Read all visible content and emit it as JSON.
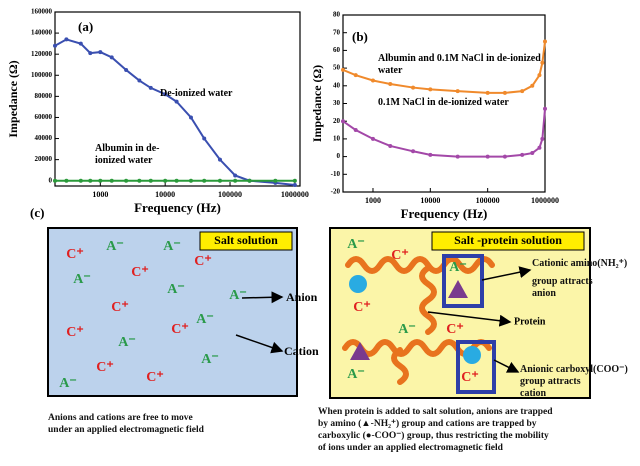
{
  "chart_data": [
    {
      "type": "line",
      "panel_label": "(a)",
      "x_label": "Frequency (Hz)",
      "y_label": "Impedance (Ω)",
      "xscale": "log",
      "xlim": [
        200,
        1200000
      ],
      "xticks": [
        1000,
        10000,
        100000,
        1000000
      ],
      "ylim": [
        -5000,
        160000
      ],
      "yticks": [
        0,
        20000,
        40000,
        60000,
        80000,
        100000,
        120000,
        140000,
        160000
      ],
      "x": [
        200,
        300,
        500,
        700,
        1000,
        1500,
        2500,
        4000,
        6000,
        10000,
        15000,
        25000,
        40000,
        70000,
        120000,
        200000,
        500000,
        1000000
      ],
      "series": [
        {
          "name": "De-ionized water",
          "color": "#3a4fb0",
          "values": [
            128000,
            134000,
            130000,
            121000,
            122000,
            117000,
            105000,
            95000,
            88000,
            82000,
            75000,
            60000,
            40000,
            20000,
            5000,
            0,
            -2000,
            -4000
          ]
        },
        {
          "name": "Albumin in de-ionized water",
          "color": "#2a9a3a",
          "values": [
            0,
            0,
            0,
            0,
            0,
            0,
            0,
            0,
            0,
            0,
            0,
            0,
            0,
            0,
            0,
            0,
            0,
            0
          ]
        }
      ]
    },
    {
      "type": "line",
      "panel_label": "(b)",
      "x_label": "Frequency (Hz)",
      "y_label": "Impedance (Ω)",
      "xscale": "log",
      "xlim": [
        300,
        1000000
      ],
      "xticks": [
        1000,
        10000,
        100000,
        1000000
      ],
      "ylim": [
        -20,
        80
      ],
      "yticks": [
        -20,
        -10,
        0,
        10,
        20,
        30,
        40,
        50,
        60,
        70,
        80
      ],
      "x": [
        300,
        500,
        1000,
        2000,
        5000,
        10000,
        30000,
        100000,
        200000,
        400000,
        600000,
        800000,
        900000,
        1000000
      ],
      "series": [
        {
          "name": "Albumin and 0.1M NaCl in de-ionized water",
          "color": "#f08a2c",
          "values": [
            49,
            46,
            43,
            41,
            39,
            38,
            37,
            36,
            36,
            37,
            40,
            46,
            53,
            65
          ]
        },
        {
          "name": "0.1M NaCl in de-ionized water",
          "color": "#a348a8",
          "values": [
            20,
            15,
            10,
            6,
            3,
            1,
            0,
            0,
            0,
            1,
            2,
            5,
            10,
            27
          ]
        }
      ]
    }
  ],
  "diagram": {
    "panel_label": "(c)",
    "left_box": {
      "title": "Salt solution",
      "ions": [
        "C⁺",
        "A⁻",
        "A⁻",
        "C⁺",
        "A⁻",
        "C⁺",
        "A⁻",
        "A⁻",
        "C⁺",
        "A⁻",
        "C⁺",
        "A⁻",
        "C⁺",
        "C⁺",
        "A⁻",
        "C⁺",
        "A⁻"
      ]
    },
    "right_box": {
      "title": "Salt -protein solution",
      "ions": [
        "A⁻",
        "C⁺",
        "A⁻",
        "C⁺",
        "A⁻",
        "C⁺",
        "A⁻",
        "C⁺"
      ]
    },
    "labels": {
      "anion": "Anion",
      "cation": "Cation",
      "protein": "Protein",
      "cationic": [
        "Cationic amino(NH₂⁺)",
        "group attracts",
        "anion"
      ],
      "anionic": [
        "Anionic carboxyl(COO⁻)",
        "group attracts",
        "cation"
      ]
    },
    "captions": {
      "left": [
        "Anions and cations are free to move",
        "under an applied electromagnetic field"
      ],
      "right": [
        "When protein is added to salt solution, anions are trapped",
        "by amino (▲-NH₂⁺) group and cations are trapped by",
        "carboxylic (●-COO⁻) group, thus restricting the mobility",
        "of ions under an applied electromagnetic field"
      ]
    }
  }
}
